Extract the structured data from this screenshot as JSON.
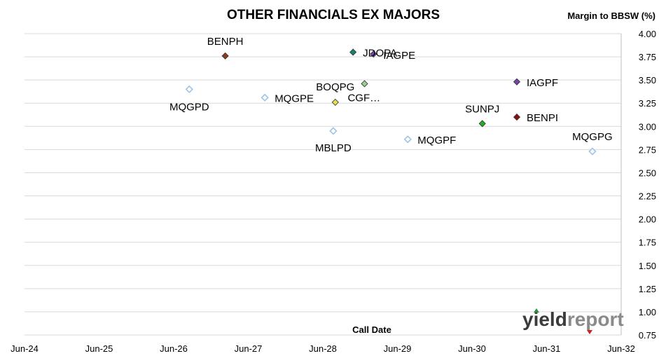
{
  "chart_data": {
    "type": "scatter",
    "title": "OTHER FINANCIALS EX MAJORS",
    "xlabel": "Call Date",
    "ylabel": "Margin to BBSW (%)",
    "xlim": [
      "2024-06-30",
      "2032-06-30"
    ],
    "ylim": [
      0.75,
      4.0
    ],
    "x_tick_labels": [
      "Jun-24",
      "Jun-25",
      "Jun-26",
      "Jun-27",
      "Jun-28",
      "Jun-29",
      "Jun-30",
      "Jun-31",
      "Jun-32"
    ],
    "y_tick_labels": [
      "0.75",
      "1.00",
      "1.25",
      "1.50",
      "1.75",
      "2.00",
      "2.25",
      "2.50",
      "2.75",
      "3.00",
      "3.25",
      "3.50",
      "3.75",
      "4.00"
    ],
    "grid": true,
    "points": [
      {
        "label": "BENPH",
        "x": "2027-03-10",
        "y": 3.76,
        "color": "#8b3a1a",
        "filled": true
      },
      {
        "label": "JDOPA",
        "x": "2028-11-25",
        "y": 3.8,
        "color": "#17806f",
        "filled": true
      },
      {
        "label": "IAGPE",
        "x": "2029-03-05",
        "y": 3.78,
        "color": "#7a3fb0",
        "filled": true
      },
      {
        "label": "MQGPD",
        "x": "2026-09-15",
        "y": 3.4,
        "color": "#9dc3e6",
        "filled": false
      },
      {
        "label": "MQGPE",
        "x": "2027-09-20",
        "y": 3.31,
        "color": "#9dc3e6",
        "filled": false
      },
      {
        "label": "BOQPG",
        "x": "2028-08-30",
        "y": 3.26,
        "color": "#e6e14a",
        "filled": true
      },
      {
        "label": "CGF…",
        "x": "2029-01-20",
        "y": 3.46,
        "color": "#9ccc8f",
        "filled": true
      },
      {
        "label": "IAGPF",
        "x": "2031-02-05",
        "y": 3.48,
        "color": "#7a3fb0",
        "filled": true
      },
      {
        "label": "MBLPD",
        "x": "2028-08-20",
        "y": 2.95,
        "color": "#9dc3e6",
        "filled": false
      },
      {
        "label": "MQGPF",
        "x": "2029-08-20",
        "y": 2.86,
        "color": "#9dc3e6",
        "filled": false
      },
      {
        "label": "SUNPJ",
        "x": "2030-08-20",
        "y": 3.03,
        "color": "#1fb01f",
        "filled": true
      },
      {
        "label": "BENPI",
        "x": "2031-02-05",
        "y": 3.1,
        "color": "#8b1010",
        "filled": true
      },
      {
        "label": "MQGPG",
        "x": "2032-02-10",
        "y": 2.73,
        "color": "#9dc3e6",
        "filled": false
      }
    ]
  },
  "logo": {
    "part1": "yield",
    "part2": "report",
    "colors": {
      "part1": "#3b3b3b",
      "part2": "#8a8a8a",
      "arrow_up": "#2e8b3e",
      "arrow_down": "#d02020"
    }
  }
}
